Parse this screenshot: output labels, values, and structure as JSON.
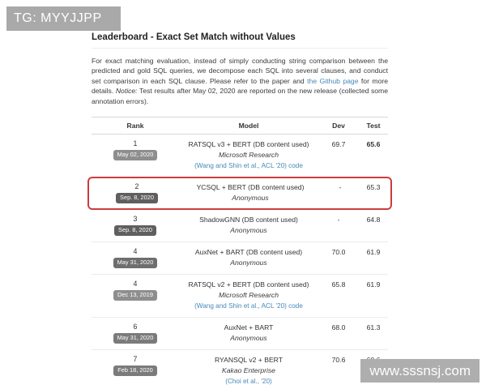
{
  "watermarks": {
    "top_left": "TG: MYYJJPP",
    "bottom_right": "www.sssnsj.com"
  },
  "page": {
    "title": "Leaderboard - Exact Set Match without Values",
    "description": {
      "part1": "For exact matching evaluation, instead of simply conducting string comparison between the predicted and gold SQL queries, we decompose each SQL into several clauses, and conduct set comparison in each SQL clause. Please refer to the paper and ",
      "github_link": "the Github page",
      "part2": " for more details. ",
      "notice_label": "Notice:",
      "part3": " Test results after May 02, 2020 are reported on the new release (collected some annotation errors)."
    }
  },
  "table": {
    "headers": {
      "rank": "Rank",
      "model": "Model",
      "dev": "Dev",
      "test": "Test"
    },
    "rows": [
      {
        "rank": "1",
        "date": "May 02, 2020",
        "badge_color": "#8e8e8e",
        "model": "RATSQL v3 + BERT (DB content used)",
        "org": "Microsoft Research",
        "cite": "(Wang and Shin et al., ACL '20) code",
        "dev": "69.7",
        "test": "65.6",
        "test_bold": true,
        "highlighted": false
      },
      {
        "rank": "2",
        "date": "Sep. 8, 2020",
        "badge_color": "#5f5f5f",
        "model": "YCSQL + BERT (DB content used)",
        "org": "Anonymous",
        "cite": "",
        "dev": "-",
        "test": "65.3",
        "test_bold": false,
        "highlighted": true
      },
      {
        "rank": "3",
        "date": "Sep. 8, 2020",
        "badge_color": "#5f5f5f",
        "model": "ShadowGNN (DB content used)",
        "org": "Anonymous",
        "cite": "",
        "dev": "-",
        "test": "64.8",
        "test_bold": false,
        "highlighted": false
      },
      {
        "rank": "4",
        "date": "May 31, 2020",
        "badge_color": "#6e6e6e",
        "model": "AuxNet + BART (DB content used)",
        "org": "Anonymous",
        "cite": "",
        "dev": "70.0",
        "test": "61.9",
        "test_bold": false,
        "highlighted": false
      },
      {
        "rank": "4",
        "date": "Dec 13, 2019",
        "badge_color": "#8e8e8e",
        "model": "RATSQL v2 + BERT (DB content used)",
        "org": "Microsoft Research",
        "cite": "(Wang and Shin et al., ACL '20) code",
        "dev": "65.8",
        "test": "61.9",
        "test_bold": false,
        "highlighted": false
      },
      {
        "rank": "6",
        "date": "May 31, 2020",
        "badge_color": "#7b7b7b",
        "model": "AuxNet + BART",
        "org": "Anonymous",
        "cite": "",
        "dev": "68.0",
        "test": "61.3",
        "test_bold": false,
        "highlighted": false
      },
      {
        "rank": "7",
        "date": "Feb 18, 2020",
        "badge_color": "#7b7b7b",
        "model": "RYANSQL v2 + BERT",
        "org": "Kakao Enterprise",
        "cite": "(Choi et al., '20)",
        "dev": "70.6",
        "test": "60.6",
        "test_bold": false,
        "highlighted": false
      }
    ]
  },
  "colors": {
    "link": "#4689b7",
    "highlight_border": "#cd3c3c",
    "watermark_bg": "#a9a9a9",
    "badge_text": "#ffffff"
  }
}
